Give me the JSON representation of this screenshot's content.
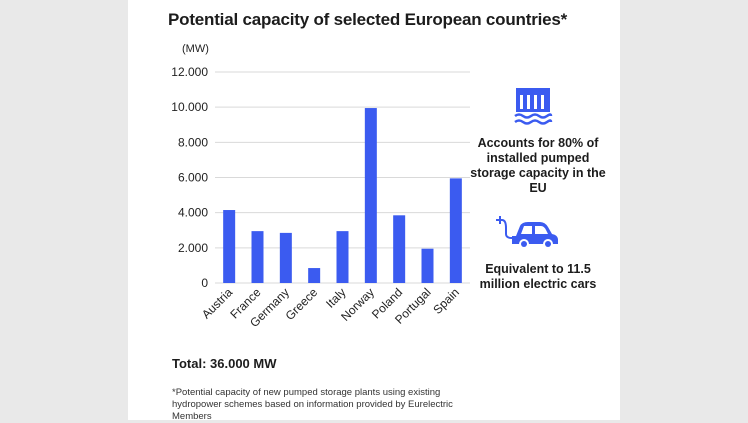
{
  "title": "Potential capacity of selected European countries*",
  "unit": "(MW)",
  "colors": {
    "bar": "#3b5bf0",
    "icon": "#3b5bf0",
    "grid": "#d9d9d9",
    "background": "#ffffff"
  },
  "chart_data": {
    "type": "bar",
    "title": "Potential capacity of selected European countries*",
    "xlabel": "",
    "ylabel": "(MW)",
    "categories": [
      "Austria",
      "France",
      "Germany",
      "Greece",
      "Italy",
      "Norway",
      "Poland",
      "Portugal",
      "Spain"
    ],
    "values": [
      4150,
      2950,
      2850,
      850,
      2950,
      9950,
      3850,
      1950,
      5950
    ],
    "ylim": [
      0,
      12000
    ],
    "yticks": [
      0,
      2000,
      4000,
      6000,
      8000,
      10000,
      12000
    ],
    "ytick_labels": [
      "0",
      "2.000",
      "4.000",
      "6.000",
      "8.000",
      "10.000",
      "12.000"
    ],
    "grid": true,
    "legend": "none"
  },
  "total": "Total: 36.000 MW",
  "side_notes": [
    {
      "icon": "hydro-dam-icon",
      "text": "Accounts for 80% of installed pumped storage capacity in the EU"
    },
    {
      "icon": "electric-car-icon",
      "text": "Equivalent to 11.5 million electric cars"
    }
  ],
  "footnote": "*Potential capacity of new pumped storage plants using existing hydropower schemes based on information provided by Eurelectric Members"
}
